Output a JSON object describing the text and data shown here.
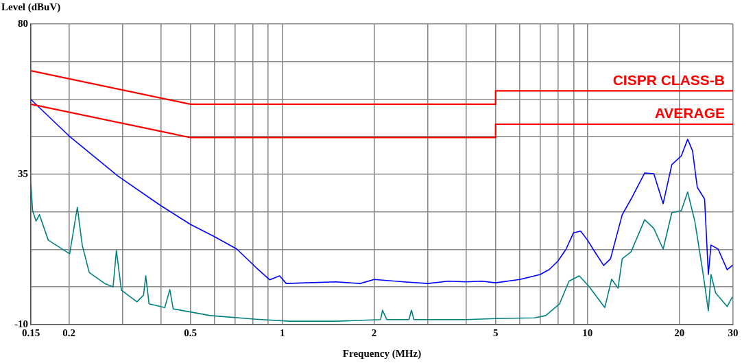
{
  "chart_data": {
    "type": "line",
    "xlabel": "Frequency (MHz)",
    "ylabel": "Level (dBuV)",
    "log": "x",
    "grid": true,
    "legend": false,
    "marker": "none",
    "line_style": "solid",
    "xlim": [
      0.15,
      30
    ],
    "ylim": [
      -10,
      80
    ],
    "xticks": [
      0.15,
      0.2,
      {
        "value": 0.3,
        "label": null
      },
      {
        "value": 0.4,
        "label": null
      },
      0.5,
      {
        "value": 0.6,
        "label": null
      },
      {
        "value": 0.7,
        "label": null
      },
      {
        "value": 0.8,
        "label": null
      },
      {
        "value": 0.9,
        "label": null
      },
      1,
      2,
      {
        "value": 3,
        "label": null
      },
      {
        "value": 4,
        "label": null
      },
      5,
      {
        "value": 6,
        "label": null
      },
      {
        "value": 7,
        "label": null
      },
      {
        "value": 8,
        "label": null
      },
      {
        "value": 9,
        "label": null
      },
      10,
      20,
      30
    ],
    "yticks": [
      -10,
      {
        "value": 1.25,
        "label": null
      },
      {
        "value": 12.5,
        "label": null
      },
      {
        "value": 23.75,
        "label": null
      },
      35,
      {
        "value": 46.25,
        "label": null
      },
      {
        "value": 57.5,
        "label": null
      },
      {
        "value": 68.75,
        "label": null
      },
      80
    ],
    "series": [
      {
        "name": "CISPR CLASS-B",
        "color": "#ff0000",
        "x": [
          0.15,
          0.5,
          5,
          5,
          30
        ],
        "values": [
          66,
          56,
          56,
          60,
          60
        ]
      },
      {
        "name": "AVERAGE",
        "color": "#ff0000",
        "x": [
          0.15,
          0.5,
          5,
          5,
          30
        ],
        "values": [
          56,
          46,
          46,
          50,
          50
        ]
      },
      {
        "color": "#0000ff",
        "x": [
          0.15,
          0.2,
          0.29,
          0.4,
          0.5,
          0.6,
          0.71,
          0.82,
          0.91,
          0.98,
          1.03,
          1.2,
          1.5,
          1.8,
          2.0,
          2.5,
          3,
          3.5,
          4,
          4.5,
          5,
          6,
          7,
          7.5,
          8,
          8.5,
          9,
          9.5,
          10,
          10.5,
          11.3,
          11.9,
          13,
          13.9,
          15.4,
          16.5,
          17.7,
          18.9,
          20.3,
          21.3,
          22.1,
          22.9,
          24.2,
          24.9,
          25.4,
          26.8,
          28.7,
          29.8
        ],
        "values": [
          57.4,
          46.5,
          34.4,
          25.6,
          20,
          16.3,
          12.6,
          7.1,
          3.4,
          4.6,
          2.3,
          2.5,
          2.8,
          2.3,
          3.5,
          2.8,
          2.3,
          3,
          2.8,
          3,
          2.5,
          3.5,
          5,
          6.5,
          9,
          12.5,
          17.5,
          18,
          15.3,
          12.2,
          7.7,
          9.7,
          22.9,
          27.6,
          35.4,
          35.2,
          26.2,
          37.9,
          40.5,
          45.5,
          42,
          31.1,
          27.6,
          5,
          13.8,
          12.6,
          6.4,
          7.7
        ]
      },
      {
        "color": "#008080",
        "x": [
          0.15,
          0.152,
          0.156,
          0.16,
          0.171,
          0.201,
          0.205,
          0.213,
          0.221,
          0.233,
          0.262,
          0.279,
          0.286,
          0.297,
          0.334,
          0.351,
          0.357,
          0.366,
          0.412,
          0.428,
          0.439,
          0.581,
          0.82,
          1.06,
          1.5,
          2.1,
          2.13,
          2.2,
          2.6,
          2.65,
          2.7,
          4,
          5,
          6.7,
          7.3,
          8.1,
          8.7,
          9.4,
          10.1,
          11.4,
          12.0,
          12.6,
          13.0,
          13.9,
          15.4,
          16.5,
          17.7,
          18.9,
          20.3,
          21.3,
          22.5,
          23.9,
          24.9,
          25.4,
          26.3,
          28.7,
          29.8
        ],
        "values": [
          32.3,
          24.1,
          21.0,
          22.9,
          15.3,
          11.2,
          15.9,
          25.1,
          13.8,
          5.6,
          2.3,
          1.3,
          12.2,
          0.3,
          -3.2,
          -1.2,
          4.6,
          -3.8,
          -4.9,
          0.5,
          -5.3,
          -7.3,
          -8.4,
          -9,
          -9,
          -8.5,
          -5.7,
          -8.5,
          -8.5,
          -5.7,
          -8.5,
          -8.5,
          -8.2,
          -8,
          -7.3,
          -3.8,
          3,
          4.6,
          1.5,
          -4.9,
          3.6,
          0.9,
          9.7,
          11.8,
          21.4,
          18.8,
          12.6,
          23.5,
          24.1,
          29.7,
          20.8,
          5.6,
          -5.9,
          5,
          -0.5,
          -4.6,
          -1.8
        ]
      }
    ]
  }
}
